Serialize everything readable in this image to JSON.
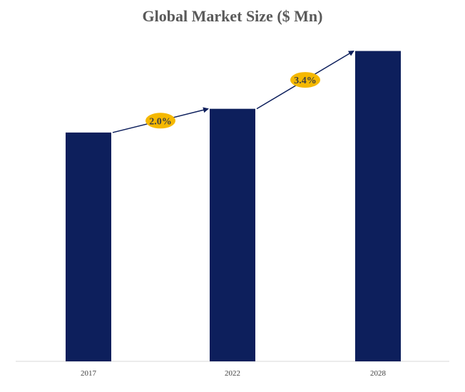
{
  "chart_data": {
    "type": "bar",
    "title": "Global Market Size ($ Mn)",
    "categories": [
      "2017",
      "2022",
      "2028"
    ],
    "values": [
      55,
      60.7,
      74.6
    ],
    "ylim": [
      0,
      80
    ],
    "grid": false,
    "legend": "none",
    "bar_color": "#0d1f5c",
    "annotations": [
      {
        "from": "2017",
        "to": "2022",
        "label": "2.0%"
      },
      {
        "from": "2022",
        "to": "2028",
        "label": "3.4%"
      }
    ],
    "annotation_color": "#f5b800",
    "arrow_color": "#0d1f5c"
  }
}
